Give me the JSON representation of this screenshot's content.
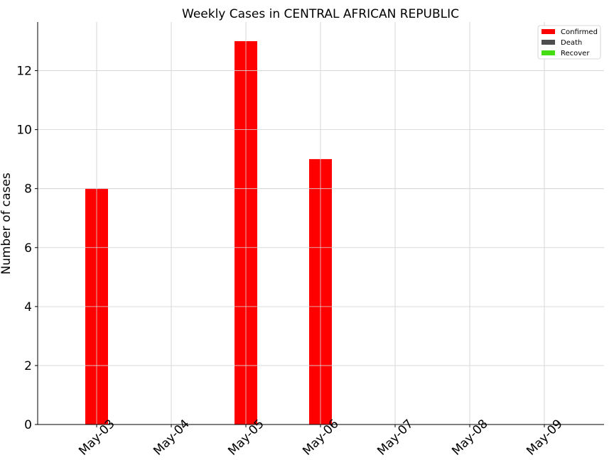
{
  "chart_data": {
    "type": "bar",
    "title": "Weekly Cases in CENTRAL AFRICAN REPUBLIC",
    "xlabel": "",
    "ylabel": "Number of cases",
    "categories": [
      "May-03",
      "May-04",
      "May-05",
      "May-06",
      "May-07",
      "May-08",
      "May-09"
    ],
    "series": [
      {
        "name": "Confirmed",
        "color": "#ff0000",
        "values": [
          8,
          0,
          13,
          9,
          0,
          0,
          0
        ]
      },
      {
        "name": "Death",
        "color": "#4d4d4d",
        "values": [
          0,
          0,
          0,
          0,
          0,
          0,
          0
        ]
      },
      {
        "name": "Recover",
        "color": "#44dd11",
        "values": [
          0,
          0,
          0,
          0,
          0,
          0,
          0
        ]
      }
    ],
    "ylim": [
      0,
      13.65
    ],
    "yticks": [
      0,
      2,
      4,
      6,
      8,
      10,
      12
    ],
    "grid": true,
    "legend_position": "top-right"
  }
}
